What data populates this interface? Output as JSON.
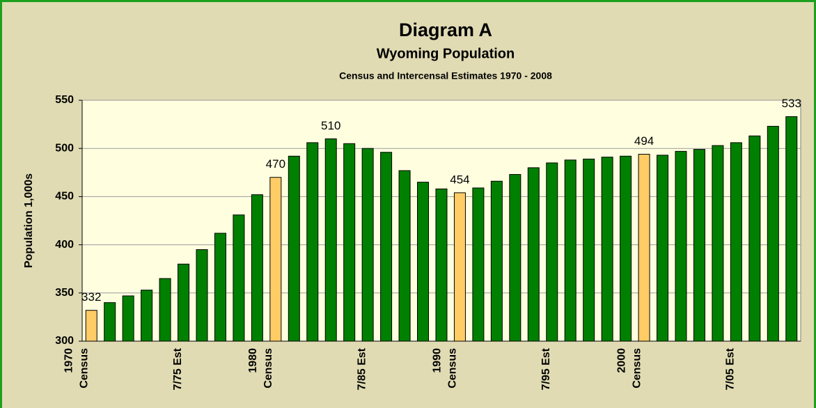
{
  "chart_data": {
    "type": "bar",
    "title": "Diagram A",
    "subtitle": "Wyoming Population",
    "subtitle2": "Census and Intercensal Estimates  1970 - 2008",
    "y_label": "Population 1,000s",
    "categories": [
      [
        "1970",
        "Census"
      ],
      null,
      null,
      null,
      null,
      [
        "7/75 Est"
      ],
      null,
      null,
      null,
      null,
      [
        "1980",
        "Census"
      ],
      null,
      null,
      null,
      null,
      [
        "7/85 Est"
      ],
      null,
      null,
      null,
      null,
      [
        "1990",
        "Census"
      ],
      null,
      null,
      null,
      null,
      [
        "7/95 Est"
      ],
      null,
      null,
      null,
      null,
      [
        "2000",
        "Census"
      ],
      null,
      null,
      null,
      null,
      [
        "7/05 Est"
      ],
      null,
      null,
      null
    ],
    "values": [
      332,
      340,
      347,
      353,
      365,
      380,
      395,
      412,
      431,
      452,
      470,
      492,
      506,
      510,
      505,
      500,
      496,
      477,
      465,
      458,
      454,
      459,
      466,
      473,
      480,
      485,
      488,
      489,
      491,
      492,
      494,
      493,
      497,
      499,
      503,
      506,
      513,
      523,
      533
    ],
    "value_labels": [
      "332",
      null,
      null,
      null,
      null,
      null,
      null,
      null,
      null,
      null,
      "470",
      null,
      null,
      "510",
      null,
      null,
      null,
      null,
      null,
      null,
      "454",
      null,
      null,
      null,
      null,
      null,
      null,
      null,
      null,
      null,
      "494",
      null,
      null,
      null,
      null,
      null,
      null,
      null,
      "533"
    ],
    "colors": [
      "#ffcc66",
      "#008000",
      "#008000",
      "#008000",
      "#008000",
      "#008000",
      "#008000",
      "#008000",
      "#008000",
      "#008000",
      "#ffcc66",
      "#008000",
      "#008000",
      "#008000",
      "#008000",
      "#008000",
      "#008000",
      "#008000",
      "#008000",
      "#008000",
      "#ffcc66",
      "#008000",
      "#008000",
      "#008000",
      "#008000",
      "#008000",
      "#008000",
      "#008000",
      "#008000",
      "#008000",
      "#ffcc66",
      "#008000",
      "#008000",
      "#008000",
      "#008000",
      "#008000",
      "#008000",
      "#008000",
      "#008000"
    ],
    "ylim": [
      300,
      550
    ],
    "yticks": [
      300,
      350,
      400,
      450,
      500,
      550
    ],
    "grid": true
  }
}
